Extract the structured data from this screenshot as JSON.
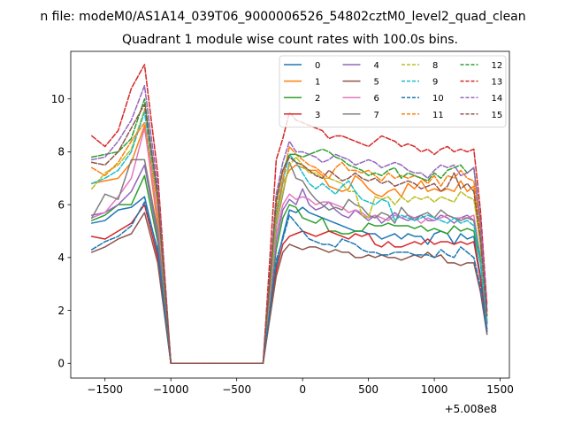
{
  "figure_title": "n file: modeM0/AS1A14_039T06_9000006526_54802cztM0_level2_quad_clean",
  "chart_data": {
    "type": "line",
    "title": "Quadrant 1 module wise count rates with 100.0s bins.",
    "xlabel": "",
    "ylabel": "",
    "x_offset_label": "+5.008e8",
    "xlim": [
      -1760,
      1570
    ],
    "ylim": [
      -0.56,
      11.8
    ],
    "x_ticks": [
      -1500,
      -1000,
      -500,
      0,
      500,
      1000,
      1500
    ],
    "x_tick_labels": [
      "−1500",
      "−1000",
      "−500",
      "0",
      "500",
      "1000",
      "1500"
    ],
    "y_ticks": [
      0,
      2,
      4,
      6,
      8,
      10
    ],
    "y_tick_labels": [
      "0",
      "2",
      "4",
      "6",
      "8",
      "10"
    ],
    "grid": false,
    "legend_position": "top-right",
    "legend_columns": 4,
    "x": [
      -1600,
      -1500,
      -1400,
      -1300,
      -1200,
      -1100,
      -1000,
      -900,
      -800,
      -700,
      -600,
      -500,
      -400,
      -300,
      -200,
      -150,
      -100,
      -50,
      0,
      50,
      100,
      150,
      200,
      250,
      300,
      350,
      400,
      450,
      500,
      550,
      600,
      650,
      700,
      750,
      800,
      850,
      900,
      950,
      1000,
      1050,
      1100,
      1150,
      1200,
      1250,
      1300,
      1350,
      1400
    ],
    "series": [
      {
        "name": "0",
        "color": "#1f77b4",
        "dashed": false,
        "values": [
          5.3,
          5.4,
          5.8,
          5.9,
          6.3,
          4.2,
          0,
          0,
          0,
          0,
          0,
          0,
          0,
          0,
          3.7,
          4.8,
          5.8,
          5.7,
          5.9,
          5.7,
          5.6,
          5.5,
          5.4,
          5.3,
          5.2,
          5.1,
          5.0,
          5.0,
          4.9,
          4.9,
          4.7,
          4.8,
          4.9,
          4.7,
          4.9,
          4.8,
          4.8,
          4.5,
          4.9,
          5.0,
          4.9,
          4.5,
          4.9,
          4.7,
          4.8,
          3.3,
          1.3
        ]
      },
      {
        "name": "1",
        "color": "#ff7f0e",
        "dashed": false,
        "values": [
          6.8,
          6.9,
          7.0,
          7.6,
          9.0,
          5.2,
          0,
          0,
          0,
          0,
          0,
          0,
          0,
          0,
          5.5,
          6.8,
          7.3,
          7.5,
          7.4,
          7.3,
          7.3,
          7.1,
          6.7,
          6.6,
          6.5,
          6.6,
          7.1,
          6.9,
          6.6,
          6.4,
          6.3,
          6.5,
          6.6,
          6.3,
          6.8,
          6.6,
          6.9,
          6.5,
          6.6,
          6.5,
          6.6,
          6.5,
          6.9,
          6.5,
          6.7,
          4.5,
          1.6
        ]
      },
      {
        "name": "2",
        "color": "#2ca02c",
        "dashed": false,
        "values": [
          5.4,
          5.6,
          6.0,
          6.0,
          7.1,
          4.6,
          0,
          0,
          0,
          0,
          0,
          0,
          0,
          0,
          4.3,
          5.5,
          6.0,
          5.9,
          5.5,
          5.4,
          5.3,
          5.5,
          5.0,
          5.0,
          4.9,
          4.9,
          5.0,
          5.0,
          5.3,
          5.2,
          5.2,
          5.3,
          5.2,
          5.2,
          5.2,
          5.1,
          5.2,
          5.0,
          5.1,
          5.0,
          4.9,
          5.2,
          5.0,
          5.1,
          5.0,
          3.8,
          1.5
        ]
      },
      {
        "name": "3",
        "color": "#d62728",
        "dashed": false,
        "values": [
          4.8,
          4.7,
          5.0,
          5.3,
          6.0,
          4.0,
          0,
          0,
          0,
          0,
          0,
          0,
          0,
          0,
          3.5,
          4.5,
          4.8,
          4.9,
          5.0,
          4.9,
          4.8,
          4.9,
          5.0,
          4.9,
          4.8,
          4.7,
          4.9,
          4.8,
          4.9,
          4.5,
          4.4,
          4.6,
          4.4,
          4.4,
          4.5,
          4.6,
          4.5,
          4.7,
          4.5,
          4.6,
          4.6,
          4.5,
          4.6,
          4.5,
          4.6,
          3.2,
          1.2
        ]
      },
      {
        "name": "4",
        "color": "#9467bd",
        "dashed": false,
        "values": [
          5.6,
          5.7,
          6.0,
          6.5,
          7.5,
          4.8,
          0,
          0,
          0,
          0,
          0,
          0,
          0,
          0,
          4.6,
          5.8,
          6.2,
          6.0,
          6.6,
          6.0,
          5.8,
          5.9,
          6.1,
          5.8,
          5.6,
          5.5,
          5.8,
          5.6,
          5.4,
          5.6,
          5.3,
          5.5,
          5.7,
          5.5,
          5.4,
          5.5,
          5.6,
          5.4,
          5.4,
          5.6,
          5.5,
          5.3,
          5.5,
          5.6,
          5.4,
          3.9,
          1.5
        ]
      },
      {
        "name": "5",
        "color": "#8c564b",
        "dashed": false,
        "values": [
          4.2,
          4.4,
          4.7,
          4.9,
          5.7,
          3.8,
          0,
          0,
          0,
          0,
          0,
          0,
          0,
          0,
          3.3,
          4.2,
          4.5,
          4.4,
          4.3,
          4.4,
          4.4,
          4.3,
          4.2,
          4.3,
          4.2,
          4.2,
          4.0,
          4.0,
          4.1,
          4.0,
          4.1,
          4.0,
          4.0,
          3.9,
          4.0,
          4.1,
          4.0,
          4.2,
          4.0,
          4.1,
          3.8,
          3.8,
          3.7,
          3.8,
          3.8,
          2.7,
          1.1
        ]
      },
      {
        "name": "6",
        "color": "#e377c2",
        "dashed": false,
        "values": [
          5.5,
          5.7,
          6.3,
          7.0,
          8.9,
          5.6,
          0,
          0,
          0,
          0,
          0,
          0,
          0,
          0,
          4.9,
          6.0,
          6.4,
          6.2,
          6.3,
          6.2,
          6.0,
          6.1,
          6.1,
          6.0,
          5.9,
          5.7,
          5.8,
          5.7,
          5.5,
          5.6,
          5.5,
          5.4,
          5.6,
          5.5,
          5.6,
          5.5,
          5.3,
          5.5,
          5.4,
          5.5,
          5.6,
          5.5,
          5.5,
          5.5,
          5.6,
          4.0,
          1.6
        ]
      },
      {
        "name": "7",
        "color": "#7f7f7f",
        "dashed": false,
        "values": [
          5.5,
          6.4,
          6.2,
          7.7,
          7.7,
          5.0,
          0,
          0,
          0,
          0,
          0,
          0,
          0,
          0,
          5.2,
          6.4,
          7.6,
          7.0,
          6.9,
          6.5,
          6.2,
          6.0,
          5.8,
          5.9,
          5.8,
          6.2,
          6.0,
          5.9,
          5.6,
          5.5,
          5.7,
          5.6,
          5.3,
          5.9,
          5.6,
          5.4,
          5.6,
          5.7,
          5.5,
          5.8,
          5.6,
          5.5,
          5.4,
          5.5,
          5.4,
          4.0,
          1.5
        ]
      },
      {
        "name": "8",
        "color": "#bcbd22",
        "dashed": true,
        "values": [
          6.6,
          7.2,
          7.5,
          8.1,
          9.6,
          6.1,
          0,
          0,
          0,
          0,
          0,
          0,
          0,
          0,
          5.3,
          6.5,
          7.5,
          7.8,
          7.5,
          7.2,
          7.2,
          7.0,
          7.0,
          6.9,
          6.8,
          6.5,
          6.5,
          5.6,
          5.5,
          6.3,
          6.2,
          6.3,
          6.0,
          6.3,
          6.1,
          6.3,
          6.2,
          6.3,
          6.1,
          6.3,
          6.2,
          6.1,
          6.5,
          6.3,
          6.2,
          4.5,
          1.8
        ]
      },
      {
        "name": "9",
        "color": "#17becf",
        "dashed": true,
        "values": [
          6.8,
          7.0,
          7.3,
          8.0,
          9.5,
          6.0,
          0,
          0,
          0,
          0,
          0,
          0,
          0,
          0,
          5.6,
          6.9,
          7.9,
          7.6,
          7.2,
          6.8,
          6.6,
          6.8,
          6.6,
          6.4,
          6.7,
          6.9,
          6.5,
          6.2,
          6.1,
          6.0,
          6.2,
          6.1,
          5.4,
          5.6,
          5.5,
          5.4,
          5.5,
          5.6,
          5.5,
          5.4,
          5.3,
          5.5,
          5.3,
          5.4,
          5.2,
          3.9,
          1.6
        ]
      },
      {
        "name": "10",
        "color": "#1f77b4",
        "dashed": true,
        "values": [
          4.3,
          4.6,
          4.8,
          5.2,
          6.1,
          4.3,
          0,
          0,
          0,
          0,
          0,
          0,
          0,
          0,
          3.9,
          4.7,
          5.6,
          5.3,
          5.0,
          4.7,
          4.6,
          4.5,
          4.5,
          4.4,
          4.7,
          4.6,
          4.5,
          4.3,
          4.2,
          4.2,
          4.1,
          4.1,
          4.2,
          4.2,
          4.2,
          4.1,
          4.1,
          4.1,
          4.0,
          4.3,
          4.1,
          4.0,
          4.4,
          4.2,
          4.0,
          2.9,
          1.2
        ]
      },
      {
        "name": "11",
        "color": "#ff7f0e",
        "dashed": true,
        "values": [
          7.4,
          7.1,
          7.6,
          8.4,
          9.1,
          6.0,
          0,
          0,
          0,
          0,
          0,
          0,
          0,
          0,
          5.8,
          7.0,
          8.2,
          7.9,
          7.7,
          7.5,
          7.4,
          7.2,
          7.0,
          7.4,
          7.6,
          7.3,
          7.3,
          7.2,
          7.3,
          7.1,
          6.9,
          7.2,
          7.0,
          7.1,
          7.0,
          7.1,
          7.0,
          6.8,
          7.1,
          6.7,
          7.1,
          7.0,
          7.3,
          7.0,
          6.9,
          5.0,
          1.9
        ]
      },
      {
        "name": "12",
        "color": "#2ca02c",
        "dashed": true,
        "values": [
          7.8,
          7.9,
          8.0,
          8.5,
          10.0,
          6.3,
          0,
          0,
          0,
          0,
          0,
          0,
          0,
          0,
          6.1,
          7.3,
          7.9,
          7.9,
          7.8,
          7.9,
          8.0,
          8.1,
          8.0,
          7.8,
          7.7,
          7.5,
          7.4,
          7.3,
          7.1,
          7.2,
          7.1,
          7.3,
          7.4,
          7.0,
          7.2,
          7.1,
          7.0,
          6.9,
          7.2,
          7.0,
          7.3,
          7.4,
          7.5,
          7.2,
          7.4,
          5.3,
          2.0
        ]
      },
      {
        "name": "13",
        "color": "#d62728",
        "dashed": true,
        "values": [
          8.6,
          8.2,
          8.8,
          10.4,
          11.3,
          7.2,
          0,
          0,
          0,
          0,
          0,
          0,
          0,
          0,
          7.7,
          8.5,
          9.5,
          9.2,
          9.1,
          9.0,
          8.9,
          8.8,
          8.5,
          8.6,
          8.6,
          8.5,
          8.4,
          8.3,
          8.2,
          8.4,
          8.6,
          8.5,
          8.4,
          8.2,
          8.3,
          8.2,
          8.0,
          8.1,
          7.9,
          8.1,
          8.2,
          8.0,
          8.1,
          8.0,
          8.1,
          5.8,
          2.2
        ]
      },
      {
        "name": "14",
        "color": "#9467bd",
        "dashed": true,
        "values": [
          7.7,
          7.8,
          8.4,
          9.2,
          10.5,
          6.7,
          0,
          0,
          0,
          0,
          0,
          0,
          0,
          0,
          6.4,
          7.6,
          8.4,
          8.0,
          8.0,
          7.9,
          7.8,
          7.6,
          7.7,
          7.9,
          7.8,
          7.7,
          7.5,
          7.6,
          7.7,
          7.6,
          7.4,
          7.5,
          7.6,
          7.5,
          7.3,
          7.2,
          7.2,
          7.0,
          7.3,
          7.5,
          7.4,
          7.5,
          7.1,
          7.2,
          7.4,
          5.3,
          2.0
        ]
      },
      {
        "name": "15",
        "color": "#8c564b",
        "dashed": true,
        "values": [
          7.6,
          7.5,
          8.0,
          8.9,
          9.8,
          6.4,
          0,
          0,
          0,
          0,
          0,
          0,
          0,
          0,
          6.2,
          7.3,
          7.8,
          7.6,
          7.5,
          7.3,
          7.1,
          7.0,
          7.3,
          7.1,
          6.9,
          7.0,
          7.2,
          7.0,
          6.9,
          7.0,
          6.8,
          6.9,
          6.7,
          6.8,
          6.9,
          6.8,
          6.6,
          6.7,
          6.8,
          6.5,
          6.7,
          7.2,
          6.6,
          6.8,
          6.5,
          4.7,
          1.8
        ]
      }
    ]
  }
}
